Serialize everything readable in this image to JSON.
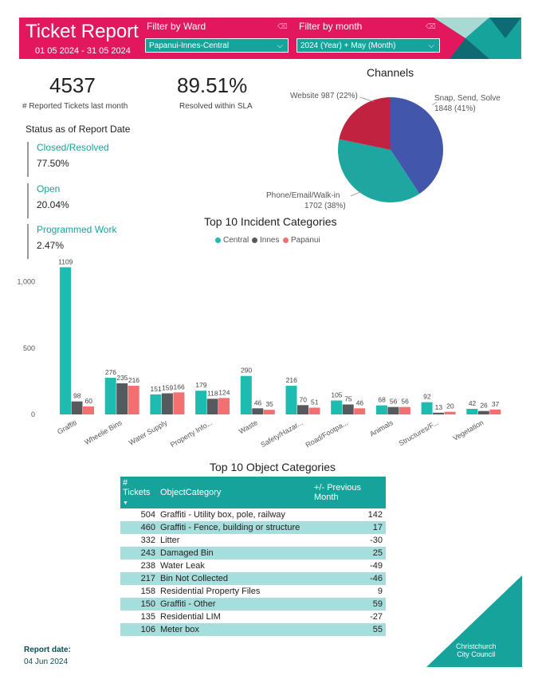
{
  "header": {
    "title": "Ticket Report",
    "date_range": "01 05 2024 - 31 05 2024",
    "ward_filter": {
      "label": "Filter by Ward",
      "value": "Papanui-Innes-Central"
    },
    "month_filter": {
      "label": "Filter by month",
      "value": "2024 (Year) + May (Month)"
    }
  },
  "kpis": [
    {
      "value": "4537",
      "label": "# Reported Tickets last month"
    },
    {
      "value": "89.51%",
      "label": "Resolved within SLA"
    }
  ],
  "status": {
    "title": "Status as of Report Date",
    "items": [
      {
        "name": "Closed/Resolved",
        "pct": "77.50%"
      },
      {
        "name": "Open",
        "pct": "20.04%"
      },
      {
        "name": "Programmed Work",
        "pct": "2.47%"
      }
    ]
  },
  "channels": {
    "title": "Channels",
    "slices": [
      {
        "label": "Snap, Send, Solve",
        "detail": "1848 (41%)",
        "value": 1848,
        "color": "#4257ab"
      },
      {
        "label": "Phone/Email/Walk-in",
        "detail": "1702 (38%)",
        "value": 1702,
        "color": "#1ea7a0"
      },
      {
        "label": "Website 987 (22%)",
        "detail": "",
        "value": 987,
        "color": "#c0233f"
      }
    ]
  },
  "chart_data": {
    "type": "bar",
    "title": "Top 10 Incident Categories",
    "categories": [
      "Graffiti",
      "Wheelie Bins",
      "Water Supply",
      "Property Info...",
      "Waste",
      "Safety/Hazar...",
      "Road/Footpa...",
      "Animals",
      "Structures/F...",
      "Vegetation"
    ],
    "series": [
      {
        "name": "Central",
        "color": "#1ebcb0",
        "values": [
          1109,
          276,
          151,
          179,
          290,
          216,
          105,
          68,
          92,
          42
        ]
      },
      {
        "name": "Innes",
        "color": "#555a5e",
        "values": [
          98,
          235,
          159,
          118,
          46,
          70,
          75,
          56,
          13,
          26
        ]
      },
      {
        "name": "Papanui",
        "color": "#f2706f",
        "values": [
          60,
          216,
          166,
          124,
          35,
          51,
          46,
          56,
          20,
          37
        ]
      }
    ],
    "yticks": [
      "0",
      "500",
      "1,000"
    ],
    "ylim": [
      0,
      1200
    ],
    "legend": "top-center"
  },
  "object_table": {
    "title": "Top 10 Object Categories",
    "headers": [
      "# Tickets",
      "ObjectCategory",
      "+/- Previous Month"
    ],
    "rows": [
      {
        "tickets": "504",
        "category": "Graffiti - Utility box, pole, railway",
        "change": "142"
      },
      {
        "tickets": "460",
        "category": "Graffiti - Fence, building or structure",
        "change": "17"
      },
      {
        "tickets": "332",
        "category": "Litter",
        "change": "-30"
      },
      {
        "tickets": "243",
        "category": "Damaged Bin",
        "change": "25"
      },
      {
        "tickets": "238",
        "category": "Water Leak",
        "change": "-49"
      },
      {
        "tickets": "217",
        "category": "Bin Not Collected",
        "change": "-46"
      },
      {
        "tickets": "158",
        "category": "Residential Property Files",
        "change": "9"
      },
      {
        "tickets": "150",
        "category": "Graffiti - Other",
        "change": "59"
      },
      {
        "tickets": "135",
        "category": "Residential LIM",
        "change": "-27"
      },
      {
        "tickets": "106",
        "category": "Meter box",
        "change": "55"
      }
    ]
  },
  "footer": {
    "report_date_label": "Report date:",
    "report_date": "04 Jun 2024",
    "logo_line1": "Christchurch",
    "logo_line2": "City Council"
  }
}
